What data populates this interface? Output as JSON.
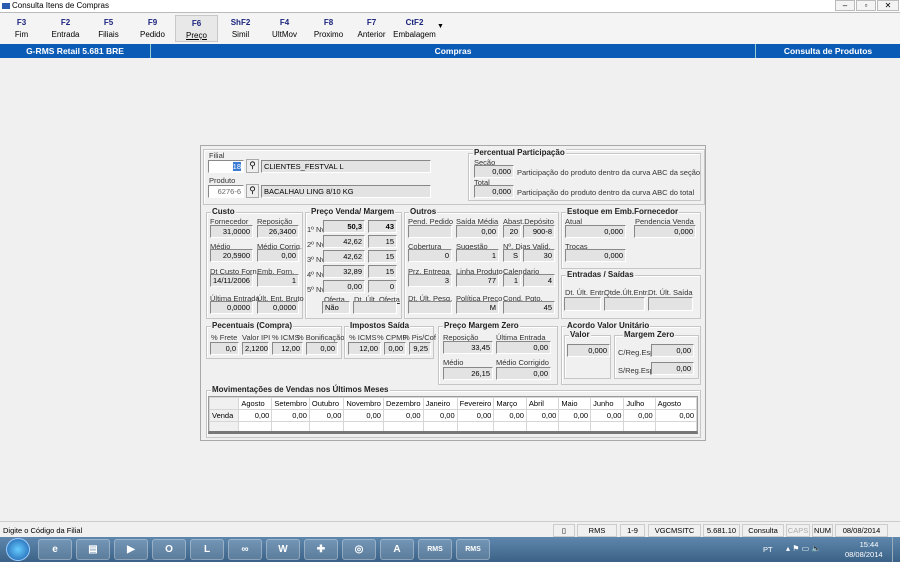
{
  "window": {
    "title": "Consulta Itens de Compras"
  },
  "toolbar": [
    {
      "key": "F3",
      "label": "Fim"
    },
    {
      "key": "F2",
      "label": "Entrada"
    },
    {
      "key": "F5",
      "label": "Filiais"
    },
    {
      "key": "F9",
      "label": "Pedido"
    },
    {
      "key": "F6",
      "label": "Preço"
    },
    {
      "key": "ShF2",
      "label": "Simil"
    },
    {
      "key": "F4",
      "label": "UltMov"
    },
    {
      "key": "F8",
      "label": "Proximo"
    },
    {
      "key": "F7",
      "label": "Anterior"
    },
    {
      "key": "CtF2",
      "label": "Embalagem"
    }
  ],
  "header": {
    "app": "G-RMS Retail 5.681 BRE",
    "module": "Compras",
    "screen": "Consulta de Produtos"
  },
  "top": {
    "filial_label": "Filial",
    "filial_value": "18",
    "filial_name": "CLIENTES_FESTVAL L",
    "produto_label": "Produto",
    "produto_value": "6276-6",
    "produto_name": "BACALHAU LING 8/10 KG",
    "perc_title": "Percentual Participação",
    "secao_label": "Seção",
    "secao_value": "0,000",
    "secao_desc": "Participação do produto dentro da curva ABC da seção",
    "total_label": "Total",
    "total_value": "0,000",
    "total_desc": "Participação do produto dentro da curva ABC do total"
  },
  "custo": {
    "title": "Custo",
    "fornecedor_label": "Fornecedor",
    "fornecedor": "31,0000",
    "reposicao_label": "Reposição",
    "reposicao": "26,3400",
    "medio_label": "Médio",
    "medio": "20,5900",
    "medio_corrig_label": "Médio Corrig.",
    "medio_corrig": "0,00",
    "dt_custo_label": "Dt Custo Forn.",
    "dt_custo": "14/11/2006",
    "emb_forn_label": "Emb. Forn.",
    "emb_forn": "1",
    "ult_entrada_label": "Última Entrada",
    "ult_entrada": "0,0000",
    "ult_ent_bruto_label": "Últ. Ent. Bruto",
    "ult_ent_bruto": "0,0000"
  },
  "preco_venda": {
    "title": "Preço Venda/ Margem",
    "levels": [
      {
        "label": "1º Nv",
        "preco": "50,3",
        "margem": "43"
      },
      {
        "label": "2º Nv",
        "preco": "42,62",
        "margem": "15"
      },
      {
        "label": "3º Nv",
        "preco": "42,62",
        "margem": "15"
      },
      {
        "label": "4º Nv",
        "preco": "32,89",
        "margem": "15"
      },
      {
        "label": "5º Nv",
        "preco": "0,00",
        "margem": "0"
      }
    ],
    "oferta_label": "Oferta",
    "oferta": "Não",
    "dt_ult_oferta_label": "Dt. Últ. Oferta",
    "dt_ult_oferta": ""
  },
  "outros": {
    "title": "Outros",
    "pend_pedido_label": "Pend. Pedido",
    "pend_pedido": "",
    "saida_media_label": "Saída Média",
    "saida_media": "0,00",
    "abast_label": "Abast.Depósito",
    "abast_a": "20",
    "abast_b": "900-8",
    "cobertura_label": "Cobertura",
    "cobertura": "0",
    "sugestao_label": "Sugestão",
    "sugestao": "1",
    "dias_valid_label": "Nº. Dias Valid.",
    "dias_valid_a": "S",
    "dias_valid_b": "30",
    "prz_entrega_label": "Prz. Entrega",
    "prz_entrega": "3",
    "linha_produto_label": "Linha Produto",
    "linha_produto": "77",
    "calendario_label": "Calendario",
    "calendario_a": "1",
    "calendario_b": "4",
    "dt_ult_pesq_label": "Dt. Últ. Pesq.",
    "dt_ult_pesq": "",
    "politica_preco_label": "Política Preço",
    "politica_preco": "M",
    "cond_pgto_label": "Cond. Pgto.",
    "cond_pgto": "45"
  },
  "estoque": {
    "title": "Estoque em Emb.Fornecedor",
    "atual_label": "Atual",
    "atual": "0,000",
    "pendencia_label": "Pendencia Venda",
    "pendencia": "0,000",
    "trocas_label": "Trocas",
    "trocas": "0,000"
  },
  "entradas_saidas": {
    "title": "Entradas / Saídas",
    "dt_ult_entr_label": "Dt. Últ. Entr.",
    "qtde_ult_entr_label": "Qtde.Últ.Entr.",
    "dt_ult_saida_label": "Dt. Últ. Saída"
  },
  "percentuais": {
    "title": "Pecentuais (Compra)",
    "frete_label": "% Frete",
    "frete": "0,0",
    "ipi_label": "Valor IPI",
    "ipi": "2,1200",
    "icms_label": "% ICMS",
    "icms": "12,00",
    "bonif_label": "% Bonificação",
    "bonif": "0,00"
  },
  "impostos": {
    "title": "Impostos Saída",
    "icms_label": "% ICMS",
    "icms": "12,00",
    "cpmf_label": "% CPMF",
    "cpmf": "0,00",
    "pis_label": "% Pis/Cof",
    "pis": "9,25"
  },
  "margem_zero": {
    "title": "Preço Margem Zero",
    "reposicao_label": "Reposição",
    "reposicao": "33,45",
    "ult_entrada_label": "Última Entrada",
    "ult_entrada": "0,00",
    "medio_label": "Médio",
    "medio": "26,15",
    "medio_corrig_label": "Médio Corrigido",
    "medio_corrig": "0,00"
  },
  "acordo": {
    "title": "Acordo Valor Unitário",
    "valor_title": "Valor",
    "valor": "0,000",
    "mz_title": "Margem Zero",
    "creg_label": "C/Reg.Esp",
    "creg": "0,00",
    "sreg_label": "S/Reg.Esp",
    "sreg": "0,00"
  },
  "movimentacoes": {
    "title": "Movimentações de Vendas nos Últimos Meses",
    "months": [
      "Agosto",
      "Setembro",
      "Outubro",
      "Novembro",
      "Dezembro",
      "Janeiro",
      "Fevereiro",
      "Março",
      "Abril",
      "Maio",
      "Junho",
      "Julho",
      "Agosto"
    ],
    "row_label": "Venda",
    "values": [
      "0,00",
      "0,00",
      "0,00",
      "0,00",
      "0,00",
      "0,00",
      "0,00",
      "0,00",
      "0,00",
      "0,00",
      "0,00",
      "0,00",
      "0,00"
    ]
  },
  "status": {
    "message": "Digite o Código da Filial",
    "panels": [
      "RMS",
      "1-9",
      "VGCMSITC",
      "5.681.10",
      "Consulta",
      "CAPS",
      "NUM",
      "08/08/2014"
    ]
  },
  "taskbar": {
    "lang": "PT",
    "time": "15:44",
    "date": "08/08/2014",
    "apps": [
      "ie-icon",
      "explorer-icon",
      "media-icon",
      "outlook-icon",
      "lync-icon",
      "app-icon",
      "word-icon",
      "medical-icon",
      "network-icon",
      "pdf-icon",
      "rms-icon",
      "rms-icon"
    ],
    "rms_label": "RMS"
  }
}
